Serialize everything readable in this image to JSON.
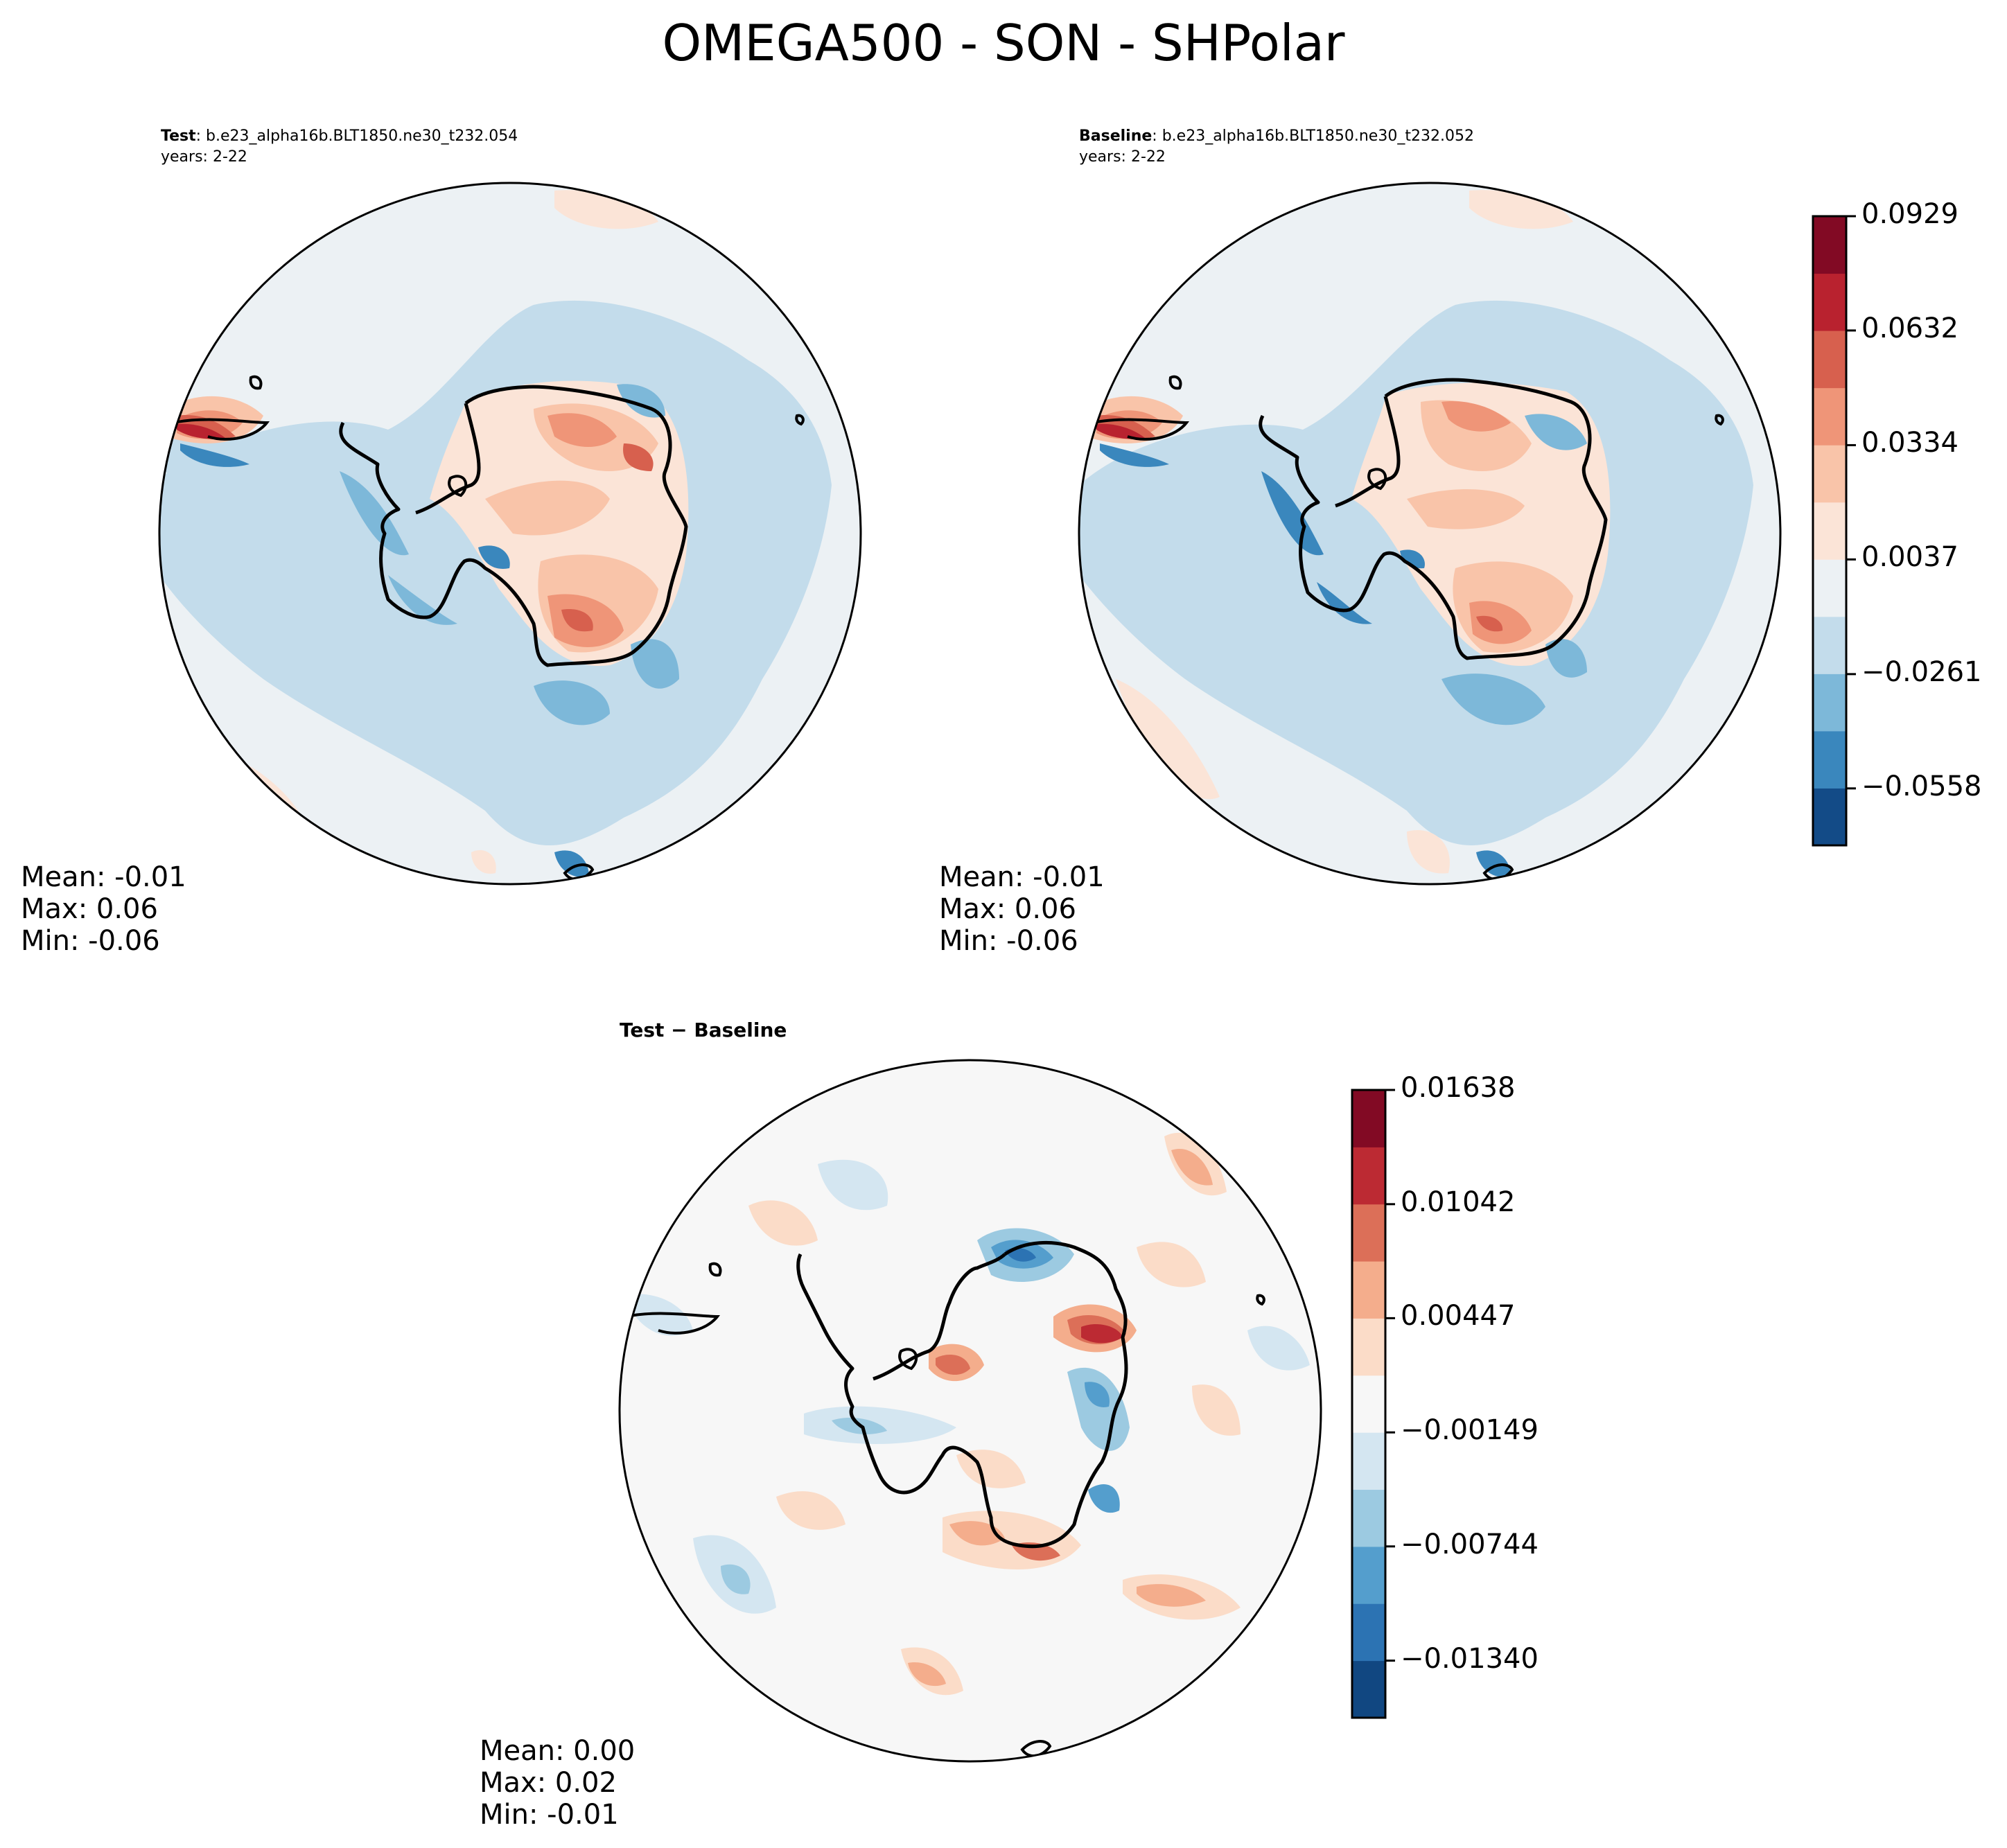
{
  "title": "OMEGA500 - SON - SHPolar",
  "panels": {
    "test": {
      "label": "Test",
      "case": ": b.e23_alpha16b.BLT1850.ne30_t232.054",
      "years": "years: 2-22",
      "stats": {
        "mean": "Mean: -0.01",
        "max": "Max:  0.06",
        "min": "Min: -0.06"
      }
    },
    "baseline": {
      "label": "Baseline",
      "case": ": b.e23_alpha16b.BLT1850.ne30_t232.052",
      "years": "years: 2-22",
      "stats": {
        "mean": "Mean: -0.01",
        "max": "Max:  0.06",
        "min": "Min: -0.06"
      }
    },
    "diff": {
      "title": "Test − Baseline",
      "stats": {
        "mean": "Mean:  0.00",
        "max": "Max:  0.02",
        "min": "Min: -0.01"
      }
    }
  },
  "colorbars": {
    "main": {
      "ticks": [
        "0.0929",
        "0.0632",
        "0.0334",
        "0.0037",
        "−0.0261",
        "−0.0558"
      ],
      "tick_values": [
        0.0929,
        0.0632,
        0.0334,
        0.0037,
        -0.0261,
        -0.0558
      ],
      "range": [
        -0.0706,
        0.0929
      ],
      "colors": [
        "#134b87",
        "#3a87bd",
        "#7db8d9",
        "#c3dceb",
        "#ecf1f4",
        "#fbe4d7",
        "#f9c4a9",
        "#ef9578",
        "#d7604e",
        "#b9222f",
        "#820a24"
      ]
    },
    "diff": {
      "ticks": [
        "0.01638",
        "0.01042",
        "0.00447",
        "−0.00149",
        "−0.00744",
        "−0.01340"
      ],
      "tick_values": [
        0.01638,
        0.01042,
        0.00447,
        -0.00149,
        -0.00744,
        -0.0134
      ],
      "range": [
        -0.01638,
        0.01638
      ],
      "colors": [
        "#114781",
        "#2c73b3",
        "#549ecd",
        "#9ccae1",
        "#d4e6f1",
        "#f7f7f7",
        "#fbdcc8",
        "#f4ad8c",
        "#dc6f58",
        "#bc2a33",
        "#820a24"
      ]
    }
  },
  "chart_data": {
    "type": "heatmap",
    "title": "OMEGA500 - SON - SHPolar",
    "projection": "South polar stereographic",
    "variable": "OMEGA500",
    "season": "SON",
    "region": "SHPolar",
    "panels": [
      {
        "name": "Test",
        "case": "b.e23_alpha16b.BLT1850.ne30_t232.054",
        "years": "2-22",
        "mean": -0.01,
        "max": 0.06,
        "min": -0.06
      },
      {
        "name": "Baseline",
        "case": "b.e23_alpha16b.BLT1850.ne30_t232.052",
        "years": "2-22",
        "mean": -0.01,
        "max": 0.06,
        "min": -0.06
      },
      {
        "name": "Test - Baseline",
        "mean": 0.0,
        "max": 0.02,
        "min": -0.01
      }
    ],
    "colorbar_levels": {
      "main": [
        0.0929,
        0.0632,
        0.0334,
        0.0037,
        -0.0261,
        -0.0558
      ],
      "diff": [
        0.01638,
        0.01042,
        0.00447,
        -0.00149,
        -0.00744,
        -0.0134
      ]
    }
  }
}
